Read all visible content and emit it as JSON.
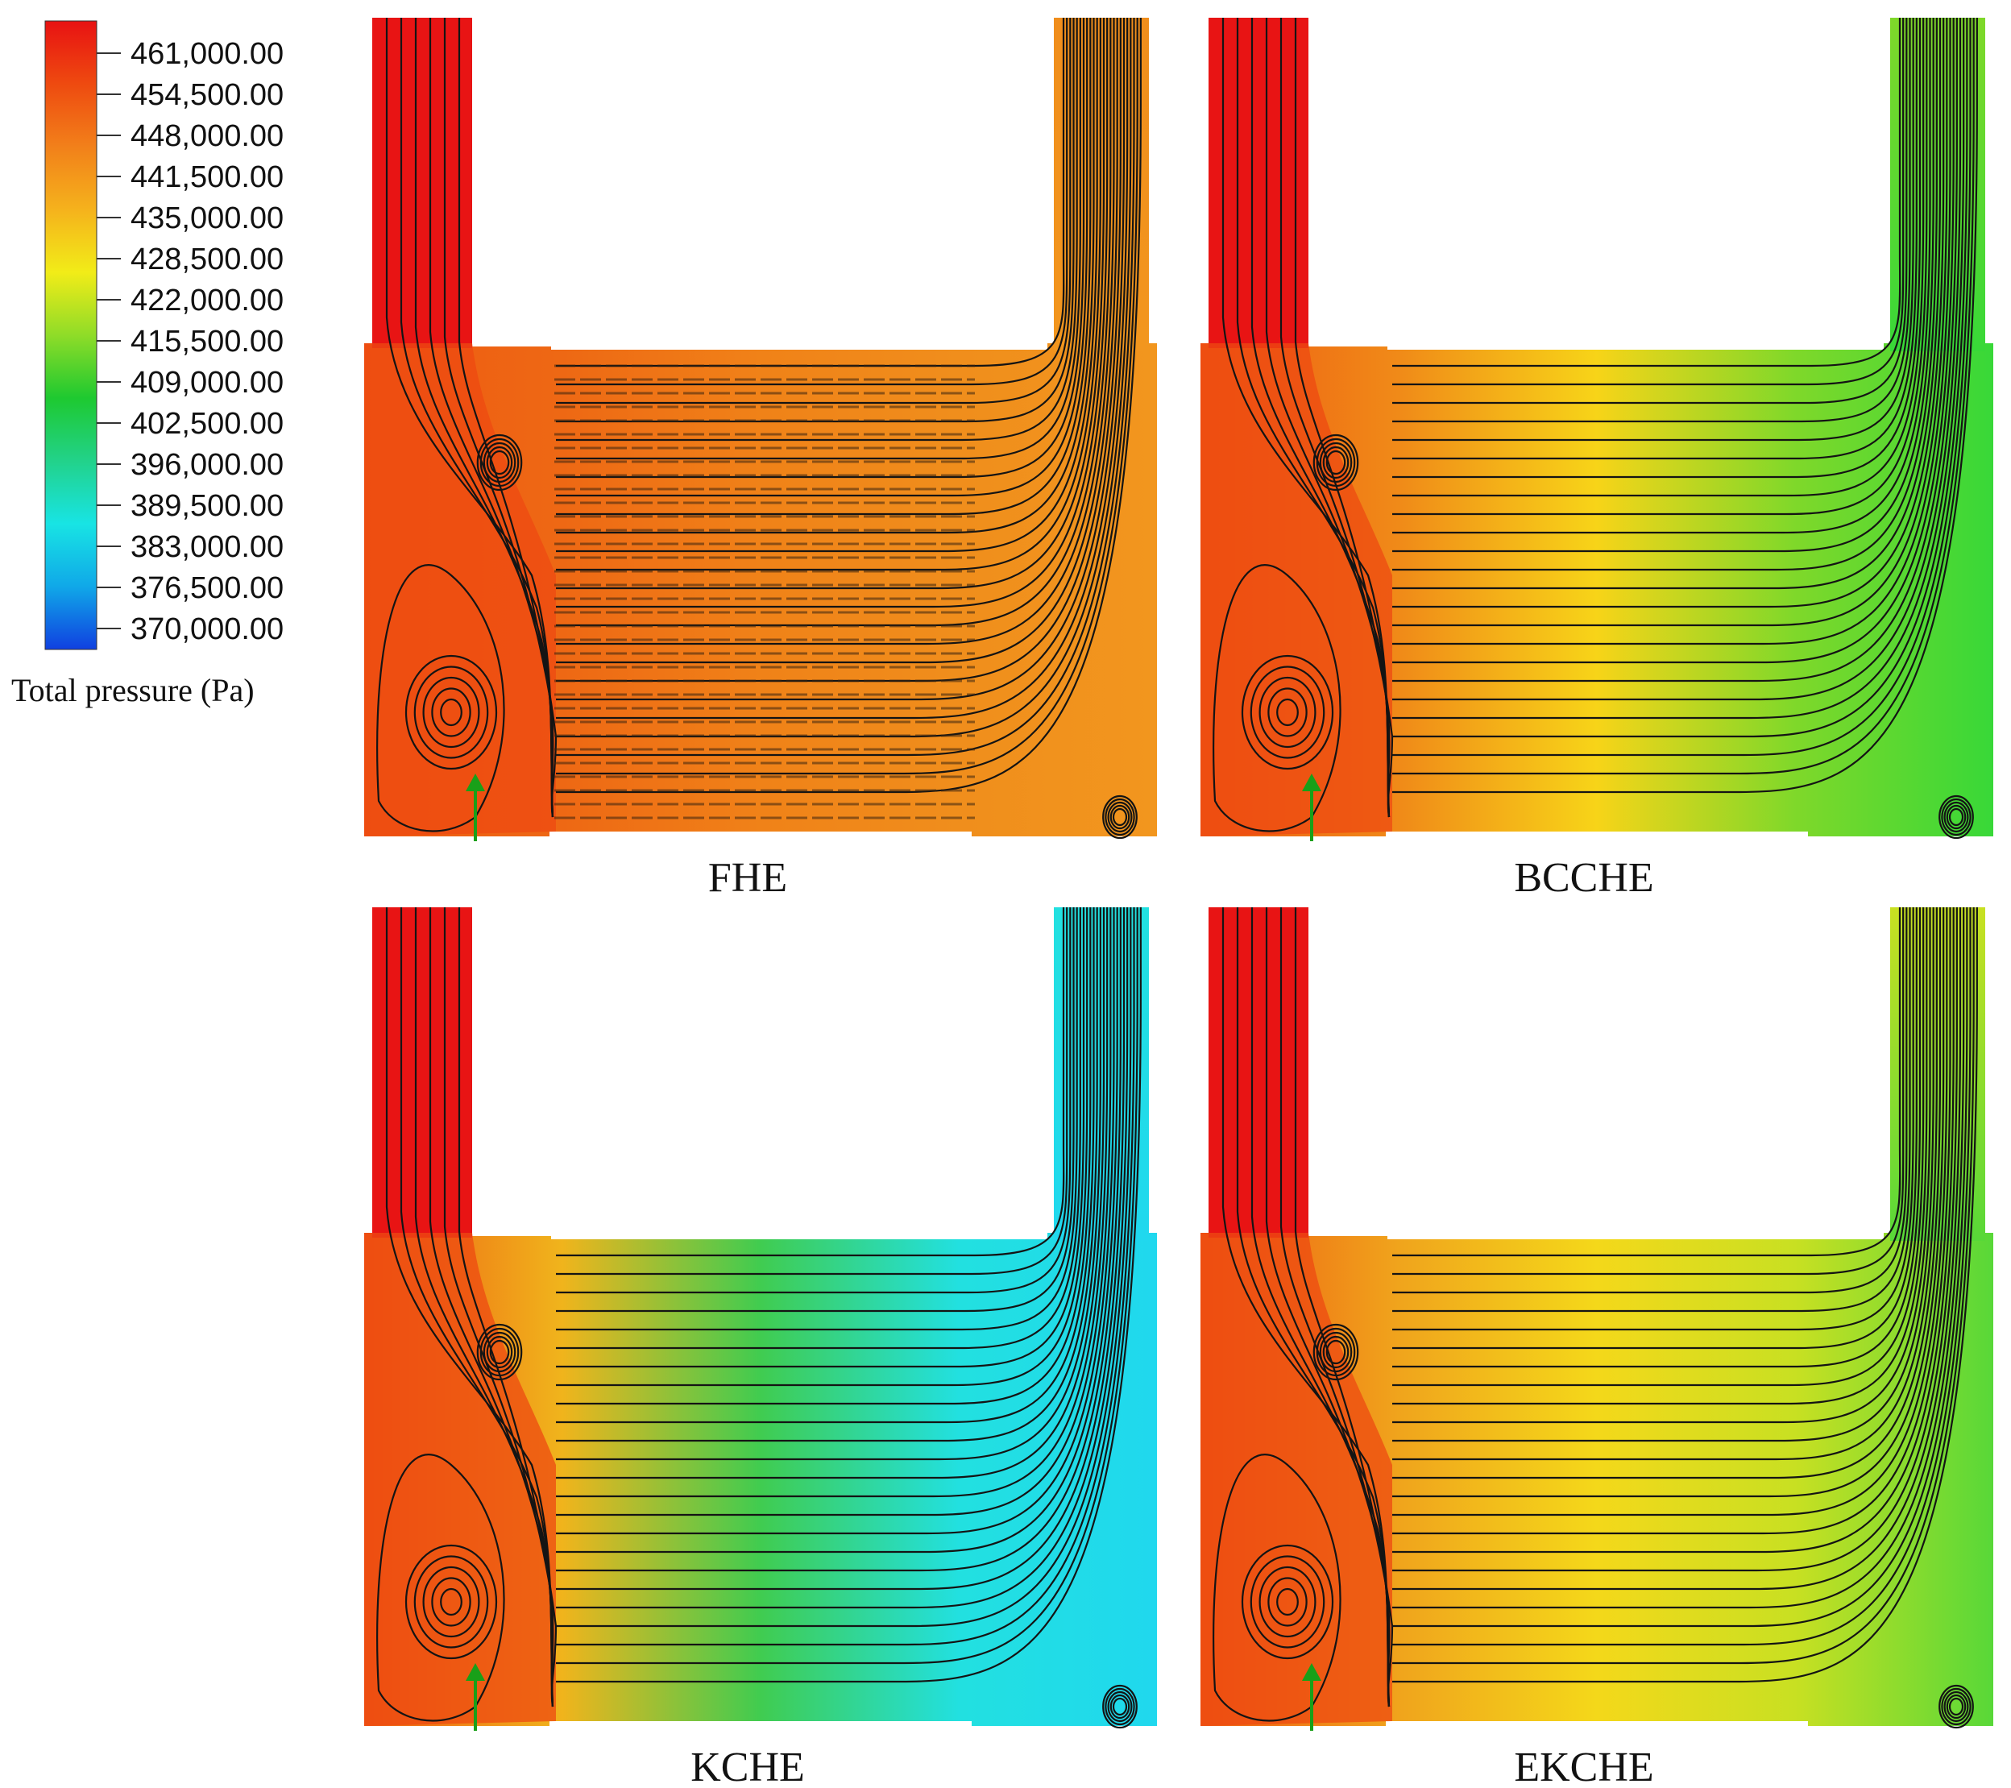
{
  "legend": {
    "title": "Total pressure (Pa)",
    "ticks": [
      "461,000.00",
      "454,500.00",
      "448,000.00",
      "441,500.00",
      "435,000.00",
      "428,500.00",
      "422,000.00",
      "415,500.00",
      "409,000.00",
      "402,500.00",
      "396,000.00",
      "389,500.00",
      "383,000.00",
      "376,500.00",
      "370,000.00"
    ],
    "colors": [
      "#e81212",
      "#ee4a10",
      "#f2801a",
      "#f5b21c",
      "#f2ec18",
      "#8fdc28",
      "#1ec930",
      "#22d28a",
      "#18e4e4",
      "#10a8e8",
      "#1040e0"
    ]
  },
  "panels": [
    {
      "label": "FHE",
      "colors": [
        "#ee5a12",
        "#ee6814",
        "#f08218",
        "#f08e1c",
        "#f2961e"
      ],
      "dense": true
    },
    {
      "label": "BCCHE",
      "colors": [
        "#ee5a12",
        "#f08a18",
        "#f7d418",
        "#7fd82a",
        "#38d838"
      ],
      "dense": false
    },
    {
      "label": "KCHE",
      "colors": [
        "#ee5a12",
        "#f0b41c",
        "#40cc50",
        "#22e0e0",
        "#20d8ee"
      ],
      "dense": false
    },
    {
      "label": "EKCHE",
      "colors": [
        "#ee5a12",
        "#f0a41c",
        "#f4d81a",
        "#c8e022",
        "#58d838"
      ],
      "dense": false
    }
  ]
}
